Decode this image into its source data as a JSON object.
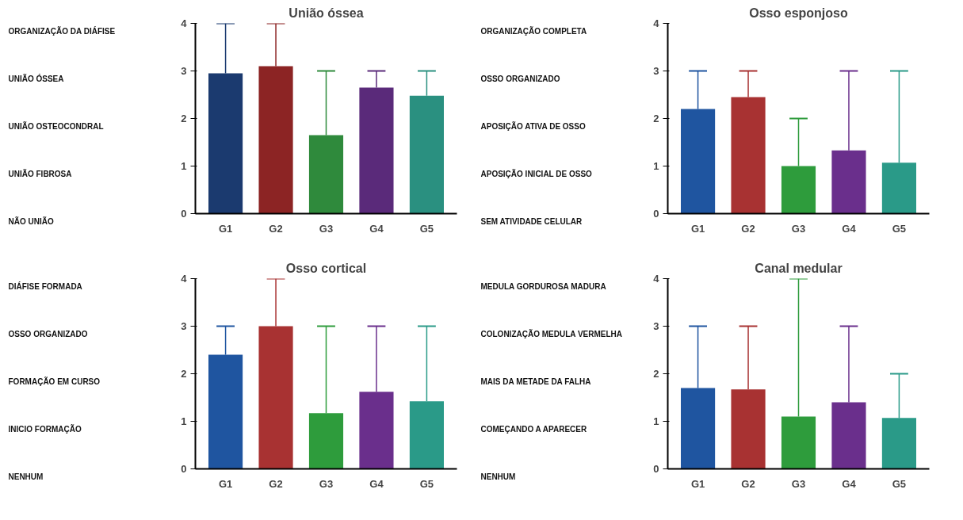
{
  "chart_data": [
    {
      "type": "bar",
      "title": "União óssea",
      "categories": [
        "G1",
        "G2",
        "G3",
        "G4",
        "G5"
      ],
      "values": [
        2.95,
        3.1,
        1.65,
        2.65,
        2.48
      ],
      "colors": [
        "#1b3a6f",
        "#8c2424",
        "#2f8a3c",
        "#5a2a7a",
        "#2a9080"
      ],
      "errors": [
        [
          2.95,
          4
        ],
        [
          3.1,
          4
        ],
        [
          1.65,
          3
        ],
        [
          2.65,
          3
        ],
        [
          2.48,
          3
        ]
      ],
      "ylim": [
        0,
        4
      ],
      "yticks": [
        0,
        1,
        2,
        3,
        4
      ],
      "grid": false,
      "legend": false,
      "annotations": [
        "ORGANIZAÇÃO DA DIÁFISE",
        "UNIÃO ÓSSEA",
        "UNIÃO OSTEOCONDRAL",
        "UNIÃO FIBROSA",
        "NÃO UNIÃO"
      ]
    },
    {
      "type": "bar",
      "title": "Osso esponjoso",
      "categories": [
        "G1",
        "G2",
        "G3",
        "G4",
        "G5"
      ],
      "values": [
        2.2,
        2.45,
        1.0,
        1.33,
        1.07
      ],
      "colors": [
        "#1f55a0",
        "#a83232",
        "#2e9c3c",
        "#6a2f8c",
        "#2a9a88"
      ],
      "errors": [
        [
          2.2,
          3
        ],
        [
          2.45,
          3
        ],
        [
          1.0,
          2
        ],
        [
          1.33,
          3
        ],
        [
          1.07,
          3
        ]
      ],
      "ylim": [
        0,
        4
      ],
      "yticks": [
        0,
        1,
        2,
        3,
        4
      ],
      "grid": false,
      "legend": false,
      "annotations": [
        "ORGANIZAÇÃO COMPLETA",
        "OSSO ORGANIZADO",
        "APOSIÇÃO ATIVA DE OSSO",
        "APOSIÇÃO INICIAL DE OSSO",
        "SEM ATIVIDADE CELULAR"
      ]
    },
    {
      "type": "bar",
      "title": "Osso cortical",
      "categories": [
        "G1",
        "G2",
        "G3",
        "G4",
        "G5"
      ],
      "values": [
        2.4,
        3.0,
        1.17,
        1.62,
        1.42
      ],
      "colors": [
        "#1f55a0",
        "#a83232",
        "#2e9c3c",
        "#6a2f8c",
        "#2a9a88"
      ],
      "errors": [
        [
          2.4,
          3
        ],
        [
          3.0,
          4
        ],
        [
          1.17,
          3
        ],
        [
          1.62,
          3
        ],
        [
          1.42,
          3
        ]
      ],
      "ylim": [
        0,
        4
      ],
      "yticks": [
        0,
        1,
        2,
        3,
        4
      ],
      "grid": false,
      "legend": false,
      "annotations": [
        "DIÁFISE FORMADA",
        "OSSO ORGANIZADO",
        "FORMAÇÃO EM CURSO",
        "INICIO FORMAÇÃO",
        "NENHUM"
      ]
    },
    {
      "type": "bar",
      "title": "Canal medular",
      "categories": [
        "G1",
        "G2",
        "G3",
        "G4",
        "G5"
      ],
      "values": [
        1.7,
        1.67,
        1.1,
        1.4,
        1.07
      ],
      "colors": [
        "#1f55a0",
        "#a83232",
        "#2e9c3c",
        "#6a2f8c",
        "#2a9a88"
      ],
      "errors": [
        [
          1.7,
          3
        ],
        [
          1.67,
          3
        ],
        [
          1.1,
          4
        ],
        [
          1.4,
          3
        ],
        [
          1.07,
          2
        ]
      ],
      "ylim": [
        0,
        4
      ],
      "yticks": [
        0,
        1,
        2,
        3,
        4
      ],
      "grid": false,
      "legend": false,
      "annotations": [
        "MEDULA GORDUROSA MADURA",
        "COLONIZAÇÃO MEDULA VERMELHA",
        "MAIS DA METADE DA FALHA",
        "COMEÇANDO A APARECER",
        "NENHUM"
      ]
    }
  ]
}
